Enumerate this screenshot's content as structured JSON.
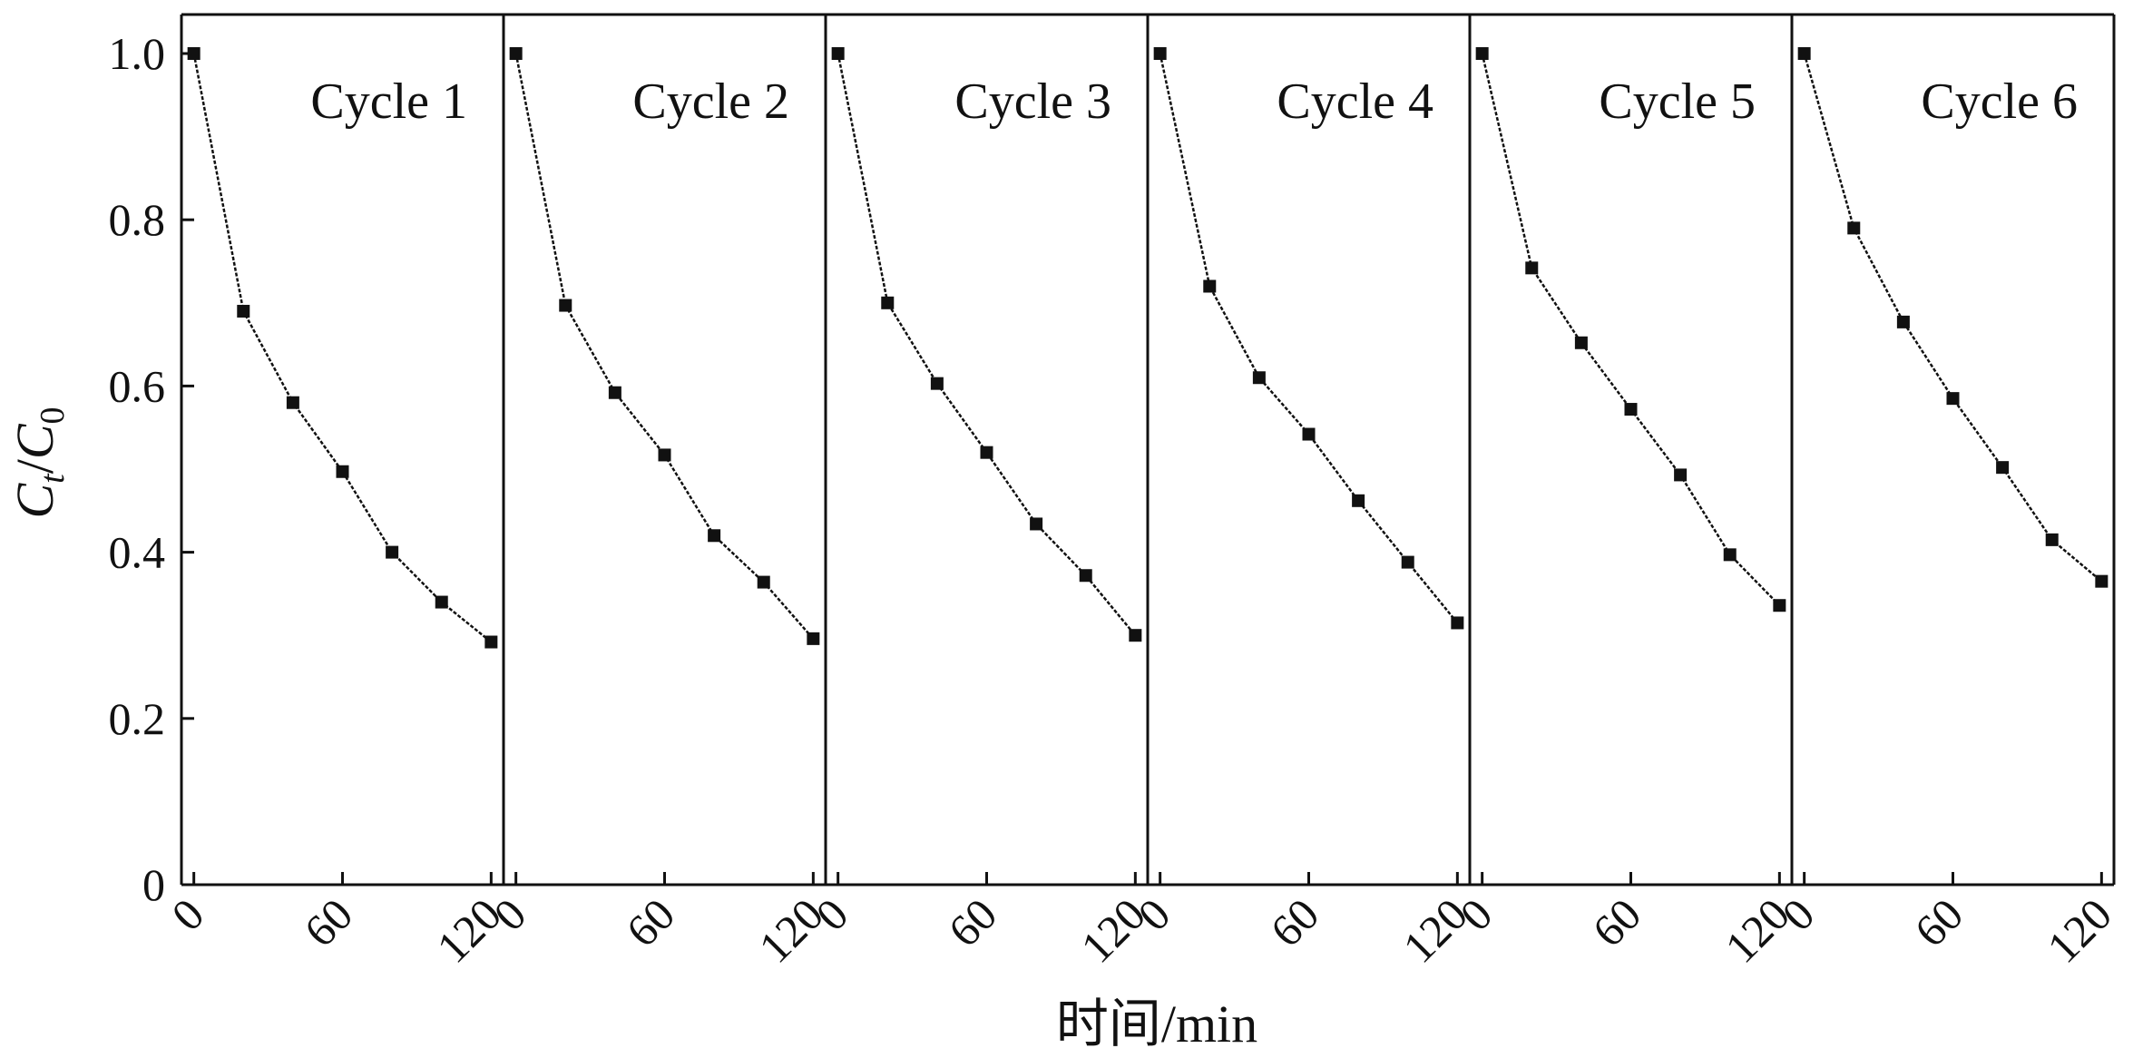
{
  "chart_data": {
    "type": "line",
    "ylabel": "Ct/C0",
    "ylabel_main": "C",
    "ylabel_sub1": "t",
    "ylabel_sep": "/",
    "ylabel_main2": "C",
    "ylabel_sub2": "0",
    "xlabel": "时间/min",
    "ylim": [
      0,
      1.05
    ],
    "xlim": [
      -5,
      125
    ],
    "yticks": [
      0,
      0.2,
      0.4,
      0.6,
      0.8,
      1.0
    ],
    "ytick_labels": [
      "0",
      "0.2",
      "0.4",
      "0.6",
      "0.8",
      "1.0"
    ],
    "xticks": [
      0,
      60,
      120
    ],
    "xtick_labels": [
      "0",
      "60",
      "120"
    ],
    "x": [
      0,
      20,
      40,
      60,
      80,
      100,
      120
    ],
    "grid": false,
    "marker": "square",
    "color": "#111111",
    "panels": [
      {
        "name": "Cycle 1",
        "values": [
          1.0,
          0.69,
          0.58,
          0.497,
          0.4,
          0.34,
          0.292
        ]
      },
      {
        "name": "Cycle 2",
        "values": [
          1.0,
          0.697,
          0.592,
          0.517,
          0.42,
          0.364,
          0.296
        ]
      },
      {
        "name": "Cycle 3",
        "values": [
          1.0,
          0.7,
          0.603,
          0.52,
          0.434,
          0.372,
          0.3
        ]
      },
      {
        "name": "Cycle 4",
        "values": [
          1.0,
          0.72,
          0.61,
          0.542,
          0.462,
          0.388,
          0.315
        ]
      },
      {
        "name": "Cycle 5",
        "values": [
          1.0,
          0.742,
          0.652,
          0.572,
          0.493,
          0.397,
          0.336
        ]
      },
      {
        "name": "Cycle 6",
        "values": [
          1.0,
          0.79,
          0.677,
          0.585,
          0.502,
          0.415,
          0.365
        ]
      }
    ]
  }
}
